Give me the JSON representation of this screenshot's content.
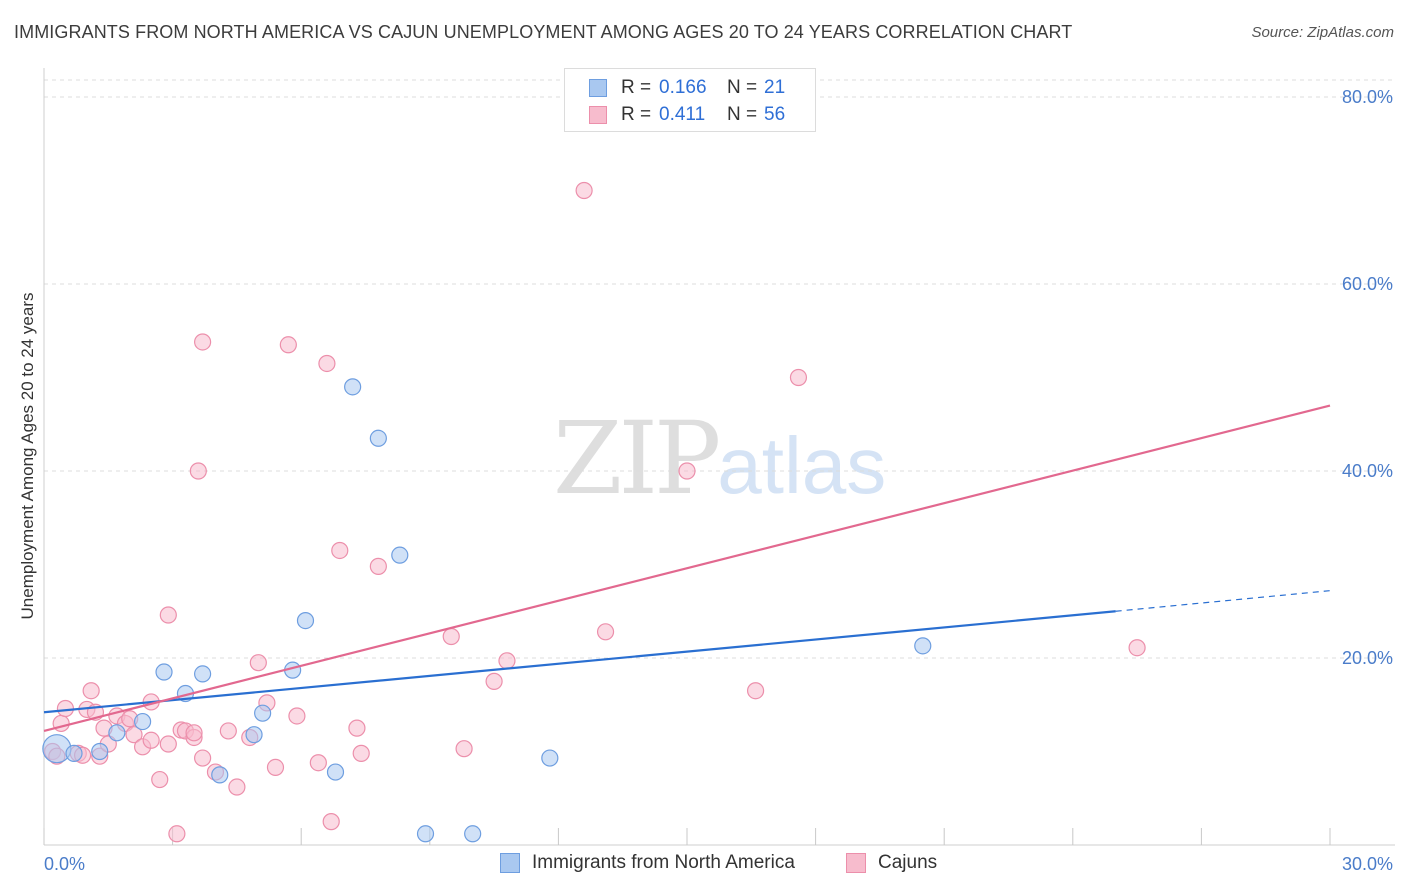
{
  "header": {
    "title": "IMMIGRANTS FROM NORTH AMERICA VS CAJUN UNEMPLOYMENT AMONG AGES 20 TO 24 YEARS CORRELATION CHART",
    "source": "Source: ZipAtlas.com"
  },
  "watermark": {
    "zip": "ZIP",
    "atlas": "atlas"
  },
  "legend": {
    "rows": [
      {
        "r_label": "R =",
        "r_value": "0.166",
        "n_label": "N =",
        "n_value": "21",
        "color": "#a9c8f0",
        "border": "#6e9ee0"
      },
      {
        "r_label": "R =",
        "r_value": "0.411",
        "n_label": "N =",
        "n_value": "56",
        "color": "#f7bccd",
        "border": "#ec8fab"
      }
    ]
  },
  "bottom_legend": [
    {
      "label": "Immigrants from North America",
      "color": "#a9c8f0",
      "border": "#6e9ee0"
    },
    {
      "label": "Cajuns",
      "color": "#f7bccd",
      "border": "#ec8fab"
    }
  ],
  "chart_data": {
    "type": "scatter",
    "title": "IMMIGRANTS FROM NORTH AMERICA VS CAJUN UNEMPLOYMENT AMONG AGES 20 TO 24 YEARS CORRELATION CHART",
    "xlabel": "",
    "ylabel": "Unemployment Among Ages 20 to 24 years",
    "xlim": [
      0,
      30
    ],
    "ylim": [
      0,
      80
    ],
    "x_tick_labels": [
      "0.0%",
      "30.0%"
    ],
    "y_tick_labels": [
      "20.0%",
      "40.0%",
      "60.0%",
      "80.0%"
    ],
    "y_ticks": [
      20,
      40,
      60,
      80
    ],
    "grid": true,
    "series": [
      {
        "name": "Immigrants from North America",
        "color": "#a9c8f0",
        "stroke": "#6e9ee0",
        "line_color": "#2a6fd1",
        "trend": {
          "x0": 0,
          "y0": 14.2,
          "x1": 25,
          "y1": 25.0,
          "dashed_to_x": 30,
          "dashed_to_y": 27.2
        },
        "points": [
          [
            0.3,
            10.3,
            16
          ],
          [
            1.3,
            10.0,
            10
          ],
          [
            1.7,
            12.0,
            10
          ],
          [
            2.3,
            13.2,
            10
          ],
          [
            2.8,
            18.5,
            10
          ],
          [
            3.3,
            16.2,
            10
          ],
          [
            3.7,
            18.3,
            10
          ],
          [
            4.1,
            7.5,
            10
          ],
          [
            4.9,
            11.8,
            10
          ],
          [
            5.1,
            14.1,
            10
          ],
          [
            5.8,
            18.7,
            10
          ],
          [
            6.1,
            24.0,
            10
          ],
          [
            6.8,
            7.8,
            10
          ],
          [
            7.2,
            49.0,
            10
          ],
          [
            7.8,
            43.5,
            10
          ],
          [
            8.3,
            31.0,
            10
          ],
          [
            8.9,
            1.2,
            10
          ],
          [
            10.0,
            1.2,
            10
          ],
          [
            11.8,
            9.3,
            10
          ],
          [
            20.5,
            21.3,
            10
          ],
          [
            0.7,
            9.8,
            10
          ]
        ]
      },
      {
        "name": "Cajuns",
        "color": "#f7bccd",
        "stroke": "#ec8fab",
        "line_color": "#e2688f",
        "trend": {
          "x0": 0,
          "y0": 12.2,
          "x1": 30,
          "y1": 47.0
        },
        "points": [
          [
            0.2,
            10.0,
            10
          ],
          [
            0.4,
            13.0,
            10
          ],
          [
            0.5,
            14.6,
            10
          ],
          [
            0.8,
            9.8,
            10
          ],
          [
            1.0,
            14.5,
            10
          ],
          [
            1.1,
            16.5,
            10
          ],
          [
            1.3,
            9.5,
            10
          ],
          [
            1.4,
            12.5,
            10
          ],
          [
            1.5,
            10.8,
            10
          ],
          [
            1.7,
            13.8,
            10
          ],
          [
            1.9,
            13.0,
            10
          ],
          [
            2.1,
            11.8,
            10
          ],
          [
            2.3,
            10.5,
            10
          ],
          [
            2.5,
            11.2,
            10
          ],
          [
            2.5,
            15.3,
            10
          ],
          [
            2.7,
            7.0,
            10
          ],
          [
            2.9,
            10.8,
            10
          ],
          [
            2.9,
            24.6,
            10
          ],
          [
            3.1,
            1.2,
            10
          ],
          [
            3.2,
            12.3,
            10
          ],
          [
            3.3,
            12.2,
            10
          ],
          [
            3.5,
            11.5,
            10
          ],
          [
            3.6,
            40.0,
            10
          ],
          [
            3.7,
            53.8,
            10
          ],
          [
            3.7,
            9.3,
            10
          ],
          [
            4.0,
            7.8,
            10
          ],
          [
            4.3,
            12.2,
            10
          ],
          [
            4.5,
            6.2,
            10
          ],
          [
            4.8,
            11.5,
            10
          ],
          [
            5.0,
            19.5,
            10
          ],
          [
            5.2,
            15.2,
            10
          ],
          [
            5.4,
            8.3,
            10
          ],
          [
            5.7,
            53.5,
            10
          ],
          [
            5.9,
            13.8,
            10
          ],
          [
            6.4,
            8.8,
            10
          ],
          [
            6.6,
            51.5,
            10
          ],
          [
            6.7,
            2.5,
            10
          ],
          [
            6.9,
            31.5,
            10
          ],
          [
            7.3,
            12.5,
            10
          ],
          [
            7.4,
            9.8,
            10
          ],
          [
            7.8,
            29.8,
            10
          ],
          [
            9.5,
            22.3,
            10
          ],
          [
            9.8,
            10.3,
            10
          ],
          [
            10.5,
            17.5,
            10
          ],
          [
            10.8,
            19.7,
            10
          ],
          [
            12.6,
            70.0,
            10
          ],
          [
            13.1,
            22.8,
            10
          ],
          [
            15.0,
            40.0,
            10
          ],
          [
            16.6,
            16.5,
            10
          ],
          [
            17.6,
            50.0,
            10
          ],
          [
            25.5,
            21.1,
            10
          ],
          [
            0.3,
            9.5,
            10
          ],
          [
            1.2,
            14.2,
            10
          ],
          [
            2.0,
            13.5,
            10
          ],
          [
            3.5,
            12.0,
            10
          ],
          [
            0.9,
            9.6,
            10
          ]
        ]
      }
    ]
  }
}
